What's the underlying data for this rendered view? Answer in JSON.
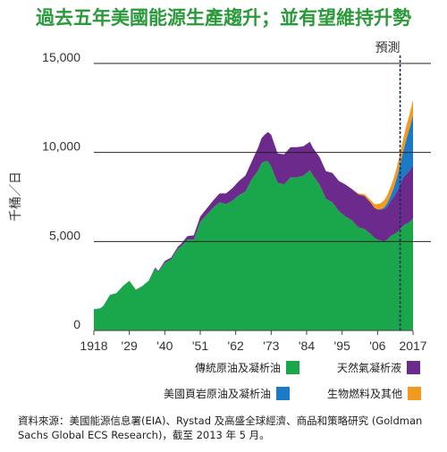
{
  "title": "過去五年美國能源生產趨升；並有望維持升勢",
  "colors": {
    "title": "#2a9a3a",
    "conventional": "#1aa64a",
    "ngl": "#6b2a8c",
    "shale": "#1a7ac8",
    "biofuel": "#f29a1e",
    "gridline": "#222222"
  },
  "chart_data": {
    "type": "area",
    "stacked": true,
    "ylabel": "千桶／日",
    "ylim": [
      0,
      15000
    ],
    "yticks": [
      0,
      5000,
      10000,
      15000
    ],
    "ytick_labels": [
      "0",
      "5,000",
      "10,000",
      "15,000"
    ],
    "xlim": [
      1918,
      2017
    ],
    "xticks": [
      1918,
      1929,
      1940,
      1951,
      1962,
      1973,
      1984,
      1995,
      2006,
      2017
    ],
    "xtick_labels": [
      "1918",
      "'29",
      "'40",
      "'51",
      "'62",
      "'73",
      "'84",
      "'95",
      "'06",
      "2017"
    ],
    "grid": "horizontal",
    "forecast_start": 2013,
    "forecast_label": "預測",
    "x": [
      1918,
      1920,
      1921,
      1923,
      1925,
      1927,
      1929,
      1931,
      1933,
      1935,
      1937,
      1938,
      1940,
      1942,
      1944,
      1945,
      1947,
      1949,
      1951,
      1953,
      1955,
      1957,
      1959,
      1961,
      1963,
      1965,
      1967,
      1969,
      1970,
      1971,
      1972,
      1973,
      1975,
      1977,
      1979,
      1981,
      1983,
      1985,
      1986,
      1988,
      1990,
      1992,
      1994,
      1996,
      1998,
      2000,
      2002,
      2004,
      2005,
      2006,
      2007,
      2008,
      2009,
      2010,
      2011,
      2012,
      2013,
      2014,
      2015,
      2016,
      2017
    ],
    "series": [
      {
        "name": "傳統原油及凝析油",
        "values": [
          1200,
          1250,
          1400,
          2000,
          2100,
          2500,
          2800,
          2300,
          2500,
          2800,
          3500,
          3300,
          3800,
          4000,
          4600,
          4700,
          5100,
          5100,
          6100,
          6500,
          6900,
          7200,
          7100,
          7300,
          7600,
          7800,
          8500,
          9000,
          9400,
          9500,
          9500,
          9200,
          8300,
          8200,
          8600,
          8600,
          8700,
          9000,
          8700,
          8200,
          7400,
          7200,
          6700,
          6400,
          6200,
          5800,
          5700,
          5400,
          5200,
          5100,
          5050,
          5000,
          5100,
          5300,
          5400,
          5500,
          5700,
          5900,
          6000,
          6100,
          6300
        ]
      },
      {
        "name": "天然氣凝析液",
        "values": [
          0,
          0,
          0,
          0,
          0,
          0,
          0,
          0,
          0,
          0,
          50,
          50,
          100,
          100,
          100,
          150,
          200,
          250,
          300,
          350,
          400,
          500,
          600,
          700,
          800,
          900,
          1000,
          1300,
          1400,
          1500,
          1650,
          1800,
          1650,
          1700,
          1700,
          1700,
          1650,
          1600,
          1550,
          1550,
          1550,
          1650,
          1700,
          1800,
          1750,
          1850,
          1850,
          1750,
          1700,
          1700,
          1750,
          1800,
          1850,
          1950,
          2100,
          2300,
          2500,
          2700,
          2800,
          2900,
          3000
        ]
      },
      {
        "name": "美國頁岩原油及凝析油",
        "values": [
          0,
          0,
          0,
          0,
          0,
          0,
          0,
          0,
          0,
          0,
          0,
          0,
          0,
          0,
          0,
          0,
          0,
          0,
          0,
          0,
          0,
          0,
          0,
          0,
          0,
          0,
          0,
          0,
          0,
          0,
          0,
          0,
          0,
          0,
          0,
          0,
          0,
          0,
          0,
          0,
          0,
          0,
          0,
          0,
          0,
          0,
          0,
          0,
          0,
          0,
          0,
          100,
          200,
          300,
          500,
          800,
          1100,
          1500,
          2000,
          2400,
          2800
        ]
      },
      {
        "name": "生物燃料及其他",
        "values": [
          0,
          0,
          0,
          0,
          0,
          0,
          0,
          0,
          0,
          0,
          0,
          0,
          0,
          0,
          0,
          0,
          0,
          0,
          0,
          0,
          0,
          0,
          0,
          0,
          0,
          0,
          0,
          0,
          0,
          0,
          0,
          0,
          0,
          0,
          0,
          0,
          0,
          0,
          0,
          0,
          0,
          0,
          0,
          0,
          0,
          50,
          100,
          150,
          200,
          300,
          350,
          400,
          450,
          500,
          550,
          600,
          650,
          700,
          750,
          800,
          850
        ]
      }
    ]
  },
  "legend": [
    {
      "label": "傳統原油及凝析油"
    },
    {
      "label": "天然氣凝析液"
    },
    {
      "label": "美國頁岩原油及凝析油"
    },
    {
      "label": "生物燃料及其他"
    }
  ],
  "source": "資料來源：美國能源信息署(EIA)、Rystad 及高盛全球經濟、商品和策略研究 (Goldman Sachs Global ECS Research)，截至 2013 年 5 月。"
}
